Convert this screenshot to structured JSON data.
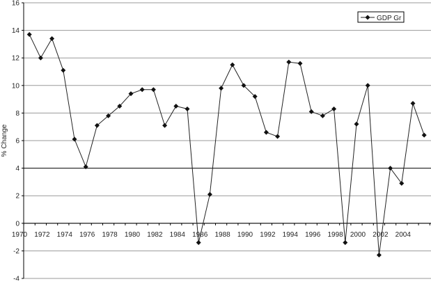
{
  "chart_data": {
    "type": "line",
    "title": "",
    "xlabel": "",
    "ylabel": "% Change",
    "ylim": [
      -4,
      16
    ],
    "xlim": [
      1970,
      2006
    ],
    "yticks": [
      -4,
      -2,
      0,
      2,
      4,
      6,
      8,
      10,
      12,
      14,
      16
    ],
    "xtick_labels": [
      "1970",
      "1972",
      "1974",
      "1976",
      "1978",
      "1980",
      "1982",
      "1984",
      "1986",
      "1988",
      "1990",
      "1992",
      "1994",
      "1996",
      "1998",
      "2000",
      "2002",
      "2004"
    ],
    "grid": true,
    "legend_position": "top-right",
    "colors": {
      "line": "#222222",
      "grid": "#999999",
      "axis": "#000000"
    },
    "series": [
      {
        "name": "GDP Gr",
        "marker": "diamond",
        "x": [
          1971,
          1972,
          1973,
          1974,
          1975,
          1976,
          1977,
          1978,
          1979,
          1980,
          1981,
          1982,
          1983,
          1984,
          1985,
          1986,
          1987,
          1988,
          1989,
          1990,
          1991,
          1992,
          1993,
          1994,
          1995,
          1996,
          1997,
          1998,
          1999,
          2000,
          2001,
          2002,
          2003,
          2004,
          2005,
          2006
        ],
        "values": [
          13.7,
          12.0,
          13.4,
          11.1,
          6.1,
          4.1,
          7.1,
          7.8,
          8.5,
          9.4,
          9.7,
          9.7,
          7.1,
          8.5,
          8.3,
          -1.4,
          2.1,
          9.8,
          11.5,
          10.0,
          9.2,
          6.6,
          6.3,
          11.7,
          11.6,
          8.1,
          7.8,
          8.3,
          -1.4,
          7.2,
          10.0,
          -2.3,
          4.0,
          2.9,
          8.7,
          6.4
        ]
      }
    ]
  }
}
